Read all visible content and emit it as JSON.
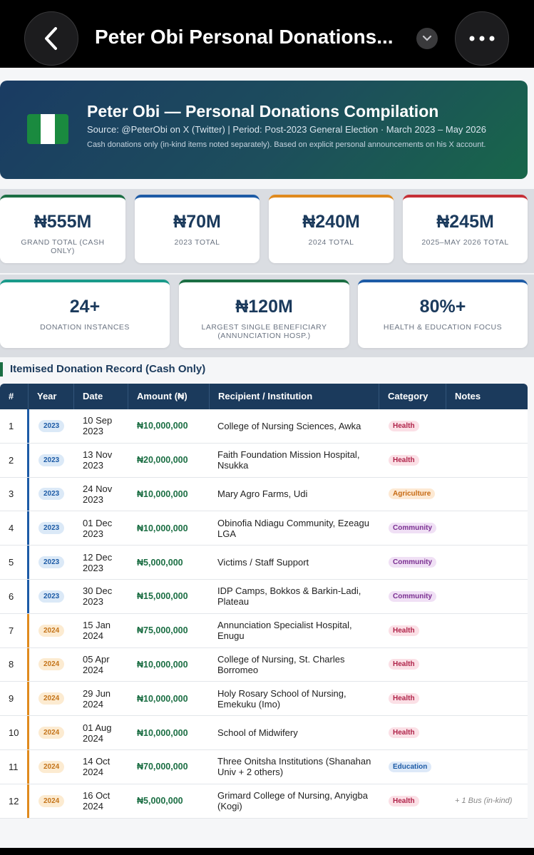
{
  "topbar": {
    "title": "Peter Obi Personal Donations...",
    "back_icon": "chevron-left-icon",
    "expand_icon": "chevron-down-icon",
    "more_icon": "more-dots-icon"
  },
  "hero": {
    "title": "Peter Obi — Personal Donations Compilation",
    "subtitle": "Source: @PeterObi on X (Twitter)  |  Period: Post-2023 General Election · March 2023 – May 2026",
    "note": "Cash donations only (in-kind items noted separately). Based on explicit personal announcements on his X account.",
    "flag_colors": [
      "#1a8a3f",
      "#ffffff",
      "#1a8a3f"
    ]
  },
  "stats_row1": [
    {
      "value": "₦555M",
      "label": "GRAND TOTAL (CASH ONLY)",
      "color": "#1b6e43"
    },
    {
      "value": "₦70M",
      "label": "2023 TOTAL",
      "color": "#1d5ba6"
    },
    {
      "value": "₦240M",
      "label": "2024 TOTAL",
      "color": "#e08a1e"
    },
    {
      "value": "₦245M",
      "label": "2025–MAY 2026 TOTAL",
      "color": "#c62f36"
    }
  ],
  "stats_row2": [
    {
      "value": "24+",
      "label": "DONATION INSTANCES",
      "color": "#1a9a8a"
    },
    {
      "value": "₦120M",
      "label": "LARGEST SINGLE BENEFICIARY (ANNUNCIATION HOSP.)",
      "color": "#1b6e43"
    },
    {
      "value": "80%+",
      "label": "HEALTH & EDUCATION FOCUS",
      "color": "#1d5ba6"
    }
  ],
  "section_title": "Itemised Donation Record (Cash Only)",
  "table": {
    "headers": [
      "#",
      "Year",
      "Date",
      "Amount (₦)",
      "Recipient / Institution",
      "Category",
      "Notes"
    ],
    "rows": [
      {
        "num": "1",
        "year": "2023",
        "date": "10 Sep 2023",
        "amount": "₦10,000,000",
        "recipient": "College of Nursing Sciences, Awka",
        "category": "Health",
        "notes": ""
      },
      {
        "num": "2",
        "year": "2023",
        "date": "13 Nov 2023",
        "amount": "₦20,000,000",
        "recipient": "Faith Foundation Mission Hospital, Nsukka",
        "category": "Health",
        "notes": ""
      },
      {
        "num": "3",
        "year": "2023",
        "date": "24 Nov 2023",
        "amount": "₦10,000,000",
        "recipient": "Mary Agro Farms, Udi",
        "category": "Agriculture",
        "notes": ""
      },
      {
        "num": "4",
        "year": "2023",
        "date": "01 Dec 2023",
        "amount": "₦10,000,000",
        "recipient": "Obinofia Ndiagu Community, Ezeagu LGA",
        "category": "Community",
        "notes": ""
      },
      {
        "num": "5",
        "year": "2023",
        "date": "12 Dec 2023",
        "amount": "₦5,000,000",
        "recipient": "Victims / Staff Support",
        "category": "Community",
        "notes": ""
      },
      {
        "num": "6",
        "year": "2023",
        "date": "30 Dec 2023",
        "amount": "₦15,000,000",
        "recipient": "IDP Camps, Bokkos & Barkin-Ladi, Plateau",
        "category": "Community",
        "notes": ""
      },
      {
        "num": "7",
        "year": "2024",
        "date": "15 Jan 2024",
        "amount": "₦75,000,000",
        "recipient": "Annunciation Specialist Hospital, Enugu",
        "category": "Health",
        "notes": ""
      },
      {
        "num": "8",
        "year": "2024",
        "date": "05 Apr 2024",
        "amount": "₦10,000,000",
        "recipient": "College of Nursing, St. Charles Borromeo",
        "category": "Health",
        "notes": ""
      },
      {
        "num": "9",
        "year": "2024",
        "date": "29 Jun 2024",
        "amount": "₦10,000,000",
        "recipient": "Holy Rosary School of Nursing, Emekuku (Imo)",
        "category": "Health",
        "notes": ""
      },
      {
        "num": "10",
        "year": "2024",
        "date": "01 Aug 2024",
        "amount": "₦10,000,000",
        "recipient": "School of Midwifery",
        "category": "Health",
        "notes": ""
      },
      {
        "num": "11",
        "year": "2024",
        "date": "14 Oct 2024",
        "amount": "₦70,000,000",
        "recipient": "Three Onitsha Institutions (Shanahan Univ + 2 others)",
        "category": "Education",
        "notes": ""
      },
      {
        "num": "12",
        "year": "2024",
        "date": "16 Oct 2024",
        "amount": "₦5,000,000",
        "recipient": "Grimard College of Nursing, Anyigba (Kogi)",
        "category": "Health",
        "notes": "+ 1 Bus (in-kind)"
      }
    ]
  }
}
